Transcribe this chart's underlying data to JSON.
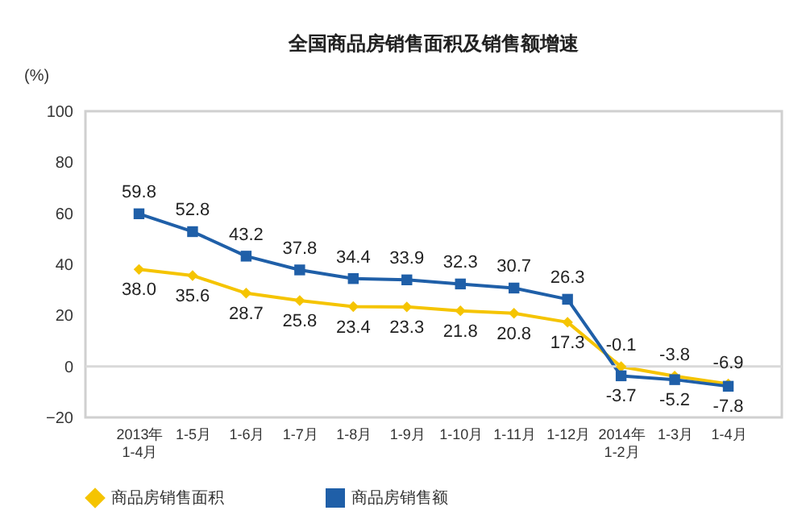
{
  "chart_data": {
    "type": "line",
    "title": "全国商品房销售面积及销售额增速",
    "ylabel": "(%)",
    "categories": [
      "2013年\n1-4月",
      "1-5月",
      "1-6月",
      "1-7月",
      "1-8月",
      "1-9月",
      "1-10月",
      "1-11月",
      "1-12月",
      "2014年\n1-2月",
      "1-3月",
      "1-4月"
    ],
    "series": [
      {
        "name": "商品房销售面积",
        "color": "#f5c400",
        "marker": "diamond",
        "values": [
          38.0,
          35.6,
          28.7,
          25.8,
          23.4,
          23.3,
          21.8,
          20.8,
          17.3,
          -0.1,
          -3.8,
          -6.9
        ],
        "value_labels": [
          "38.0",
          "35.6",
          "28.7",
          "25.8",
          "23.4",
          "23.3",
          "21.8",
          "20.8",
          "17.3",
          "-0.1",
          "-3.8",
          "-6.9"
        ]
      },
      {
        "name": "商品房销售额",
        "color": "#1f5fa8",
        "marker": "square",
        "values": [
          59.8,
          52.8,
          43.2,
          37.8,
          34.4,
          33.9,
          32.3,
          30.7,
          26.3,
          -3.7,
          -5.2,
          -7.8
        ],
        "value_labels": [
          "59.8",
          "52.8",
          "43.2",
          "37.8",
          "34.4",
          "33.9",
          "32.3",
          "30.7",
          "26.3",
          "-3.7",
          "-5.2",
          "-7.8"
        ]
      }
    ],
    "ylim": [
      -20,
      100
    ],
    "yticks": [
      -20,
      0,
      20,
      40,
      60,
      80,
      100
    ],
    "grid": false,
    "legend": "bottom",
    "ref_lines": [
      {
        "axis": "y",
        "value": 0,
        "color": "#d9d9d9"
      }
    ]
  }
}
